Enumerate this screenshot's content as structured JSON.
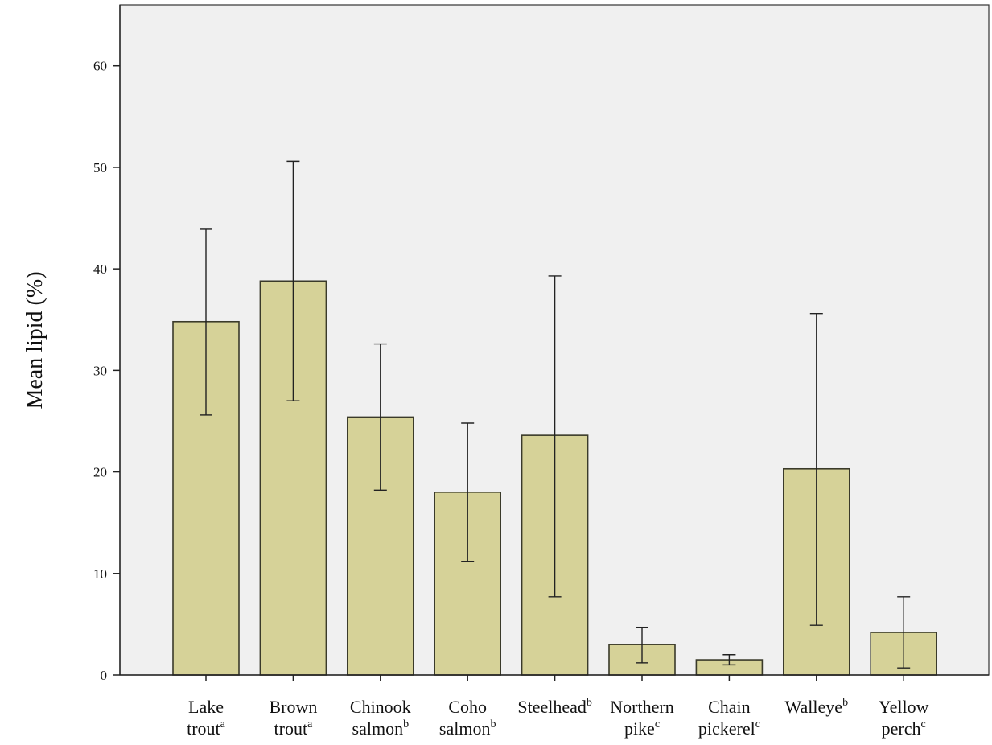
{
  "chart_data": {
    "type": "bar",
    "title": "",
    "xlabel": "",
    "ylabel": "Mean lipid (%)",
    "ylim": [
      0,
      66
    ],
    "yticks": [
      0,
      10,
      20,
      30,
      40,
      50,
      60
    ],
    "grid": false,
    "bar_color": "#d6d298",
    "plot_background": "#f0f0f0",
    "categories": [
      {
        "lines": [
          "Lake",
          "trout"
        ],
        "sup": "a"
      },
      {
        "lines": [
          "Brown",
          "trout"
        ],
        "sup": "a"
      },
      {
        "lines": [
          "Chinook",
          "salmon"
        ],
        "sup": "b"
      },
      {
        "lines": [
          "Coho",
          "salmon"
        ],
        "sup": "b"
      },
      {
        "lines": [
          "Steelhead"
        ],
        "sup": "b"
      },
      {
        "lines": [
          "Northern",
          "pike"
        ],
        "sup": "c"
      },
      {
        "lines": [
          "Chain",
          "pickerel"
        ],
        "sup": "c"
      },
      {
        "lines": [
          "Walleye"
        ],
        "sup": "b"
      },
      {
        "lines": [
          "Yellow",
          "perch"
        ],
        "sup": "c"
      }
    ],
    "values": [
      34.8,
      38.8,
      25.4,
      18.0,
      23.6,
      3.0,
      1.5,
      20.3,
      4.2
    ],
    "error_low": [
      25.6,
      27.0,
      18.2,
      11.2,
      7.7,
      1.2,
      1.0,
      4.9,
      0.7
    ],
    "error_high": [
      43.9,
      50.6,
      32.6,
      24.8,
      39.3,
      4.7,
      2.0,
      35.6,
      7.7
    ]
  }
}
